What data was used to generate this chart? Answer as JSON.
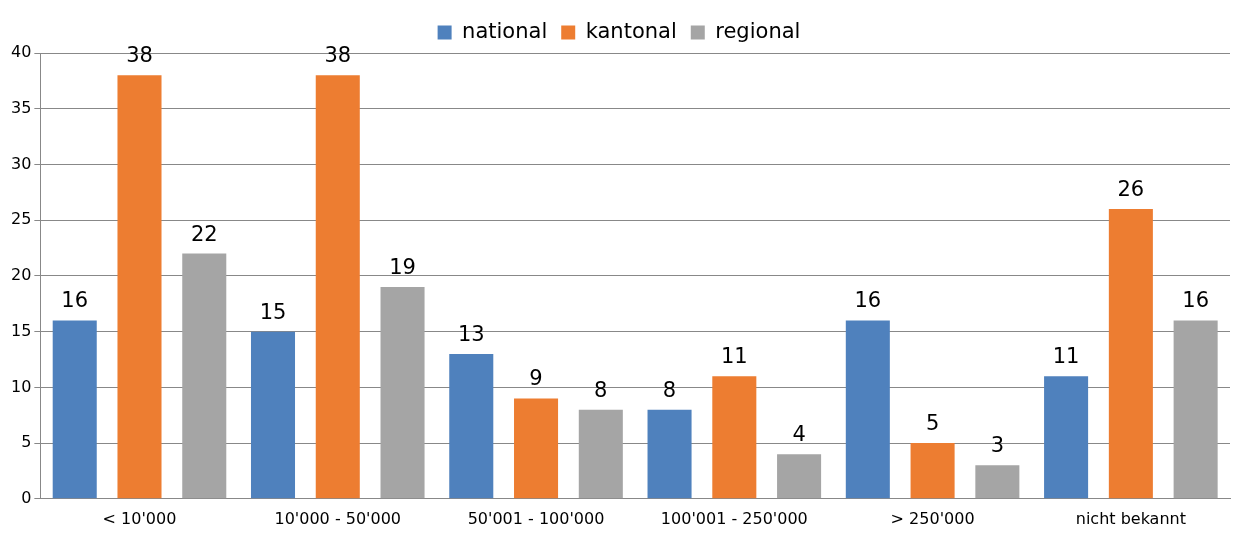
{
  "chart_data": {
    "type": "bar",
    "categories": [
      "< 10'000",
      "10'000 - 50'000",
      "50'001 - 100'000",
      "100'001 - 250'000",
      "> 250'000",
      "nicht bekannt"
    ],
    "series": [
      {
        "name": "national",
        "color": "#4f81bd",
        "values": [
          16,
          15,
          13,
          8,
          16,
          11
        ]
      },
      {
        "name": "kantonal",
        "color": "#ed7d31",
        "values": [
          38,
          38,
          9,
          11,
          5,
          26
        ]
      },
      {
        "name": "regional",
        "color": "#a5a5a5",
        "values": [
          22,
          19,
          8,
          4,
          3,
          16
        ]
      }
    ],
    "ylim": [
      0,
      40
    ],
    "yticks": [
      0,
      5,
      10,
      15,
      20,
      25,
      30,
      35,
      40
    ],
    "grid": "y",
    "legend": "top",
    "data_labels": true
  }
}
